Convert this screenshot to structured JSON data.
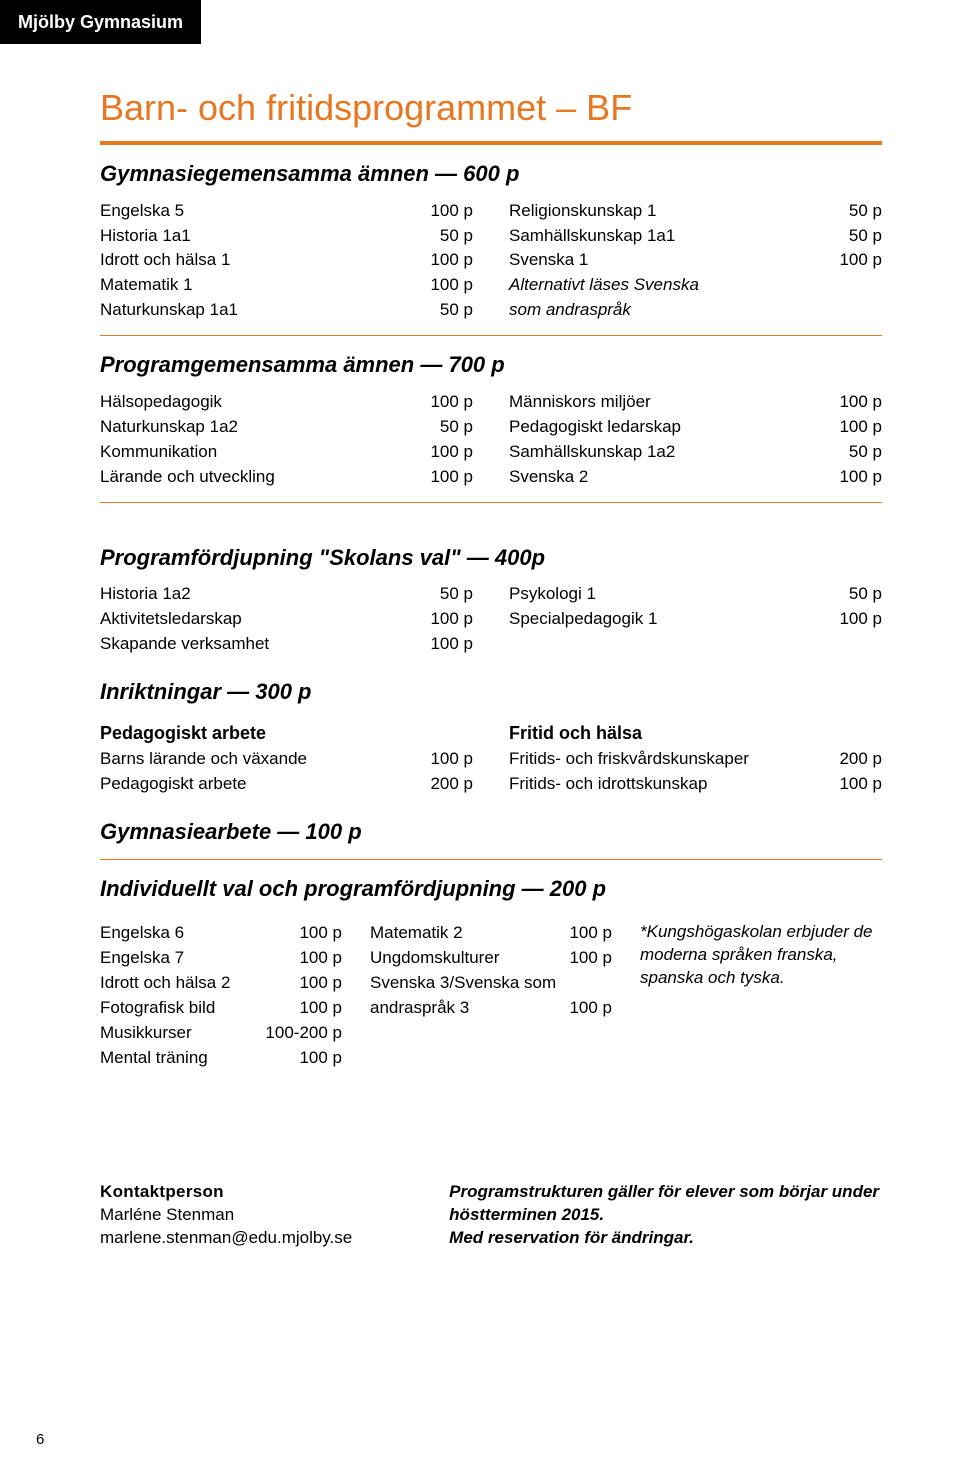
{
  "colors": {
    "accent": "#e87722",
    "tab_bg": "#000000",
    "tab_fg": "#ffffff",
    "text": "#000000",
    "page_bg": "#ffffff"
  },
  "header_tab": "Mjölby Gymnasium",
  "title": "Barn- och fritidsprogrammet – BF",
  "page_number": "6",
  "sec1": {
    "heading": "Gymnasiegemensamma ämnen — 600 p",
    "left": [
      {
        "label": "Engelska 5",
        "pts": "100 p"
      },
      {
        "label": "Historia 1a1",
        "pts": "50 p"
      },
      {
        "label": "Idrott och hälsa 1",
        "pts": "100 p"
      },
      {
        "label": "Matematik 1",
        "pts": "100 p"
      },
      {
        "label": "Naturkunskap 1a1",
        "pts": "50 p"
      }
    ],
    "right": [
      {
        "label": "Religionskunskap 1",
        "pts": "50 p"
      },
      {
        "label": "Samhällskunskap 1a1",
        "pts": "50 p"
      },
      {
        "label": "Svenska 1",
        "pts": "100 p"
      },
      {
        "label": "Alternativt läses Svenska",
        "pts": ""
      },
      {
        "label": "som andraspråk",
        "pts": ""
      }
    ]
  },
  "sec2": {
    "heading": "Programgemensamma ämnen — 700 p",
    "left": [
      {
        "label": "Hälsopedagogik",
        "pts": "100 p"
      },
      {
        "label": "Naturkunskap 1a2",
        "pts": "50 p"
      },
      {
        "label": "Kommunikation",
        "pts": "100 p"
      },
      {
        "label": "Lärande och utveckling",
        "pts": "100 p"
      }
    ],
    "right": [
      {
        "label": "Människors miljöer",
        "pts": "100 p"
      },
      {
        "label": "Pedagogiskt ledarskap",
        "pts": "100 p"
      },
      {
        "label": "Samhällskunskap 1a2",
        "pts": "50 p"
      },
      {
        "label": "Svenska 2",
        "pts": "100 p"
      }
    ]
  },
  "sec3": {
    "heading": "Programfördjupning \"Skolans val\" — 400p",
    "left": [
      {
        "label": "Historia 1a2",
        "pts": "50 p"
      },
      {
        "label": "Aktivitetsledarskap",
        "pts": "100 p"
      },
      {
        "label": "Skapande verksamhet",
        "pts": "100 p"
      }
    ],
    "right": [
      {
        "label": "Psykologi 1",
        "pts": "50 p"
      },
      {
        "label": "Specialpedagogik 1",
        "pts": "100 p"
      }
    ]
  },
  "sec4": {
    "heading": "Inriktningar — 300 p",
    "left_sub": "Pedagogiskt arbete",
    "left": [
      {
        "label": "Barns lärande och växande",
        "pts": "100 p"
      },
      {
        "label": "Pedagogiskt arbete",
        "pts": "200 p"
      }
    ],
    "right_sub": "Fritid och hälsa",
    "right": [
      {
        "label": "Fritids- och friskvårdskunskaper",
        "pts": "200 p"
      },
      {
        "label": "Fritids- och idrottskunskap",
        "pts": "100 p"
      }
    ]
  },
  "sec5": {
    "heading": "Gymnasiearbete — 100 p"
  },
  "sec6": {
    "heading": "Individuellt val och programfördjupning — 200 p",
    "col1": [
      {
        "label": "Engelska 6",
        "pts": "100 p"
      },
      {
        "label": "Engelska 7",
        "pts": "100 p"
      },
      {
        "label": "Idrott och hälsa 2",
        "pts": "100 p"
      },
      {
        "label": "Fotografisk bild",
        "pts": "100 p"
      },
      {
        "label": "Musikkurser",
        "pts": "100-200 p"
      },
      {
        "label": "Mental träning",
        "pts": "100 p"
      }
    ],
    "col2": [
      {
        "label": "Matematik 2",
        "pts": "100 p"
      },
      {
        "label": "Ungdomskulturer",
        "pts": "100 p"
      },
      {
        "label": "Svenska 3/Svenska som",
        "pts": ""
      },
      {
        "label": "andraspråk 3",
        "pts": "100 p"
      }
    ],
    "col3_note": "*Kungshögaskolan erbjuder de moderna språken franska, spanska och tyska."
  },
  "footer": {
    "contact_heading": "Kontaktperson",
    "contact_name": "Marléne Stenman",
    "contact_email": "marlene.stenman@edu.mjolby.se",
    "note_line1": "Programstrukturen gäller för elever som börjar under höstterminen 2015.",
    "note_line2": "Med reservation för ändringar."
  }
}
